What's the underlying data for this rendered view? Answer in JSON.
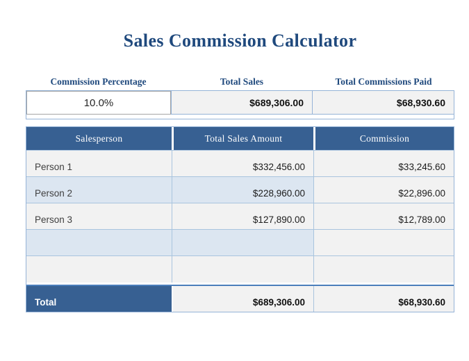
{
  "title": "Sales Commission Calculator",
  "summary": {
    "commission_percentage": {
      "label": "Commission Percentage",
      "value": "10.0%"
    },
    "total_sales": {
      "label": "Total Sales",
      "value": "$689,306.00"
    },
    "total_commissions_paid": {
      "label": "Total Commissions Paid",
      "value": "$68,930.60"
    }
  },
  "table": {
    "headers": {
      "salesperson": "Salesperson",
      "total_sales_amount": "Total Sales Amount",
      "commission": "Commission"
    },
    "rows": [
      {
        "salesperson": "Person 1",
        "total_sales_amount": "$332,456.00",
        "commission": "$33,245.60"
      },
      {
        "salesperson": "Person 2",
        "total_sales_amount": "$228,960.00",
        "commission": "$22,896.00"
      },
      {
        "salesperson": "Person 3",
        "total_sales_amount": "$127,890.00",
        "commission": "$12,789.00"
      },
      {
        "salesperson": "",
        "total_sales_amount": "",
        "commission": ""
      },
      {
        "salesperson": "",
        "total_sales_amount": "",
        "commission": ""
      }
    ],
    "total_row": {
      "label": "Total",
      "total_sales_amount": "$689,306.00",
      "commission": "$68,930.60"
    }
  },
  "colors": {
    "title_text": "#1F497D",
    "header_fill": "#376092",
    "total_fill": "#376092",
    "band_blue": "#DCE6F1",
    "band_gray": "#F2F2F2",
    "border_light_blue": "#95B3D7",
    "body_border_blue": "#A9C4DE",
    "total_top_border": "#4A7EBB",
    "input_cell_border": "#A6A6A6"
  }
}
